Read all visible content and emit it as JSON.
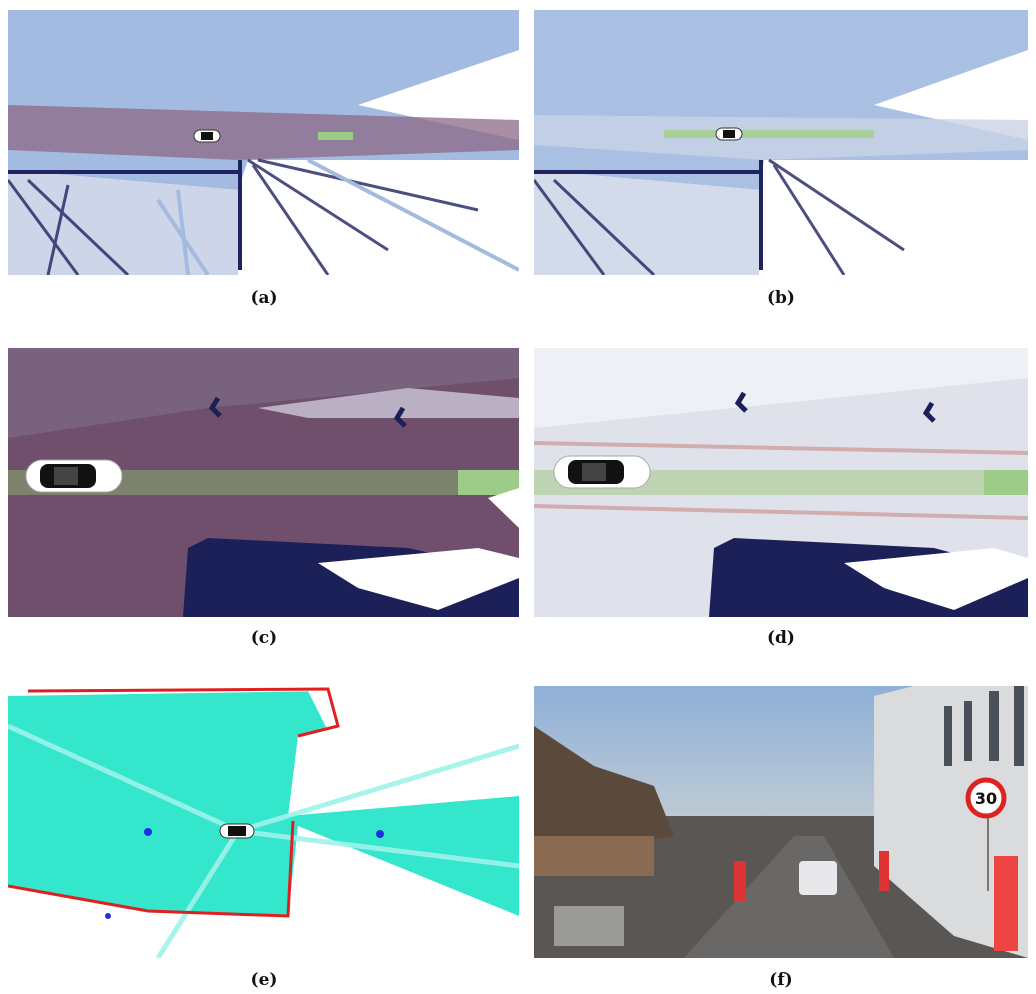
{
  "panels": [
    {
      "caption": "(a)"
    },
    {
      "caption": "(b)"
    },
    {
      "caption": "(c)"
    },
    {
      "caption": "(d)"
    },
    {
      "caption": "(e)"
    },
    {
      "caption": "(f)",
      "sign": "30"
    }
  ]
}
